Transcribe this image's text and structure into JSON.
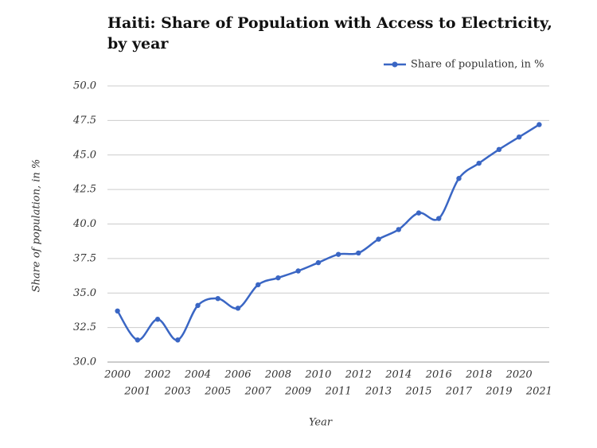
{
  "chart_data": {
    "type": "line",
    "title": "Haiti: Share of Population with Access to Electricity, by year",
    "x_label": "Year",
    "y_label": "Share of population, in %",
    "categories": [
      "2000",
      "2001",
      "2002",
      "2003",
      "2004",
      "2005",
      "2006",
      "2007",
      "2008",
      "2009",
      "2010",
      "2011",
      "2012",
      "2013",
      "2014",
      "2015",
      "2016",
      "2017",
      "2018",
      "2019",
      "2020",
      "2021"
    ],
    "series": [
      {
        "name": "Share of population, in %",
        "color": "#3a66c4",
        "values": [
          33.7,
          31.6,
          33.1,
          31.6,
          34.1,
          34.6,
          33.9,
          35.6,
          36.1,
          36.6,
          37.2,
          37.8,
          37.9,
          38.9,
          39.6,
          40.8,
          40.4,
          43.3,
          44.4,
          45.4,
          46.3,
          47.2
        ]
      }
    ],
    "ylim": [
      30,
      50
    ],
    "yticks": [
      {
        "value": 30,
        "label": "30.0"
      },
      {
        "value": 32.5,
        "label": "32.5"
      },
      {
        "value": 35,
        "label": "35.0"
      },
      {
        "value": 37.5,
        "label": "37.5"
      },
      {
        "value": 40,
        "label": "40.0"
      },
      {
        "value": 42.5,
        "label": "42.5"
      },
      {
        "value": 45,
        "label": "45.0"
      },
      {
        "value": 47.5,
        "label": "47.5"
      },
      {
        "value": 50,
        "label": "50.0"
      }
    ],
    "grid": true,
    "legend": "top-right"
  }
}
